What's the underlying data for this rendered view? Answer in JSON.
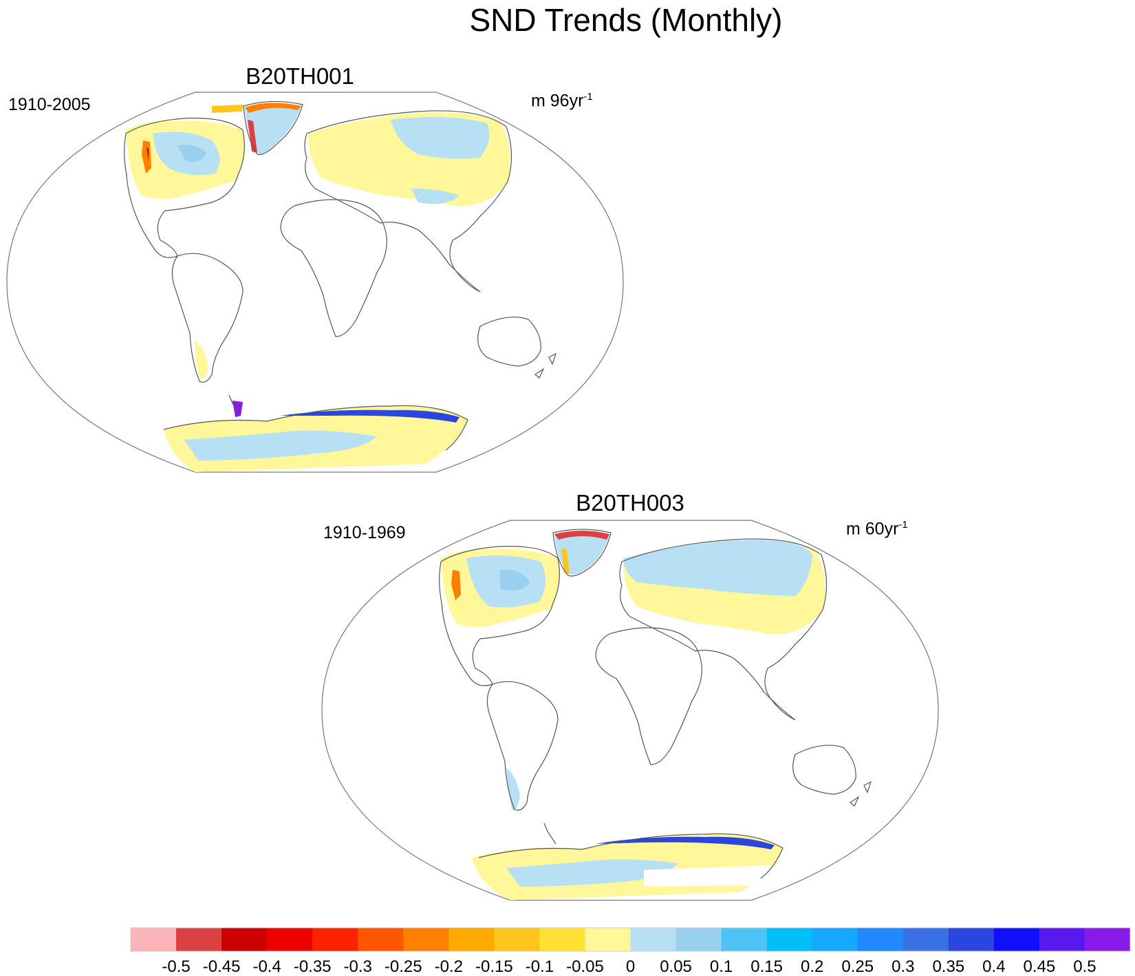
{
  "main_title": "SND Trends (Monthly)",
  "panels": [
    {
      "title": "B20TH001",
      "period": "1910-2005",
      "units_prefix": "m 96yr",
      "units_exp": "-1"
    },
    {
      "title": "B20TH003",
      "period": "1910-1969",
      "units_prefix": "m 60yr",
      "units_exp": "-1"
    }
  ],
  "chart_data": {
    "type": "heatmap",
    "projection": "Winkel-tripel style world map",
    "colorbar": {
      "labels": [
        "-0.5",
        "-0.45",
        "-0.4",
        "-0.35",
        "-0.3",
        "-0.25",
        "-0.2",
        "-0.15",
        "-0.1",
        "-0.05",
        "0",
        "0.05",
        "0.1",
        "0.15",
        "0.2",
        "0.25",
        "0.3",
        "0.35",
        "0.4",
        "0.45",
        "0.5"
      ],
      "colors": [
        "#fbb4b8",
        "#dc4040",
        "#cc0000",
        "#ee0000",
        "#ff2200",
        "#ff5500",
        "#ff8000",
        "#ffaa00",
        "#ffc51a",
        "#ffe033",
        "#fff799",
        "#b7e0f5",
        "#99d0ef",
        "#4fc4f4",
        "#00bff7",
        "#14a8ff",
        "#2288ff",
        "#3a70e6",
        "#2a45e0",
        "#1010ff",
        "#5a18f0",
        "#8a1aea"
      ]
    }
  }
}
